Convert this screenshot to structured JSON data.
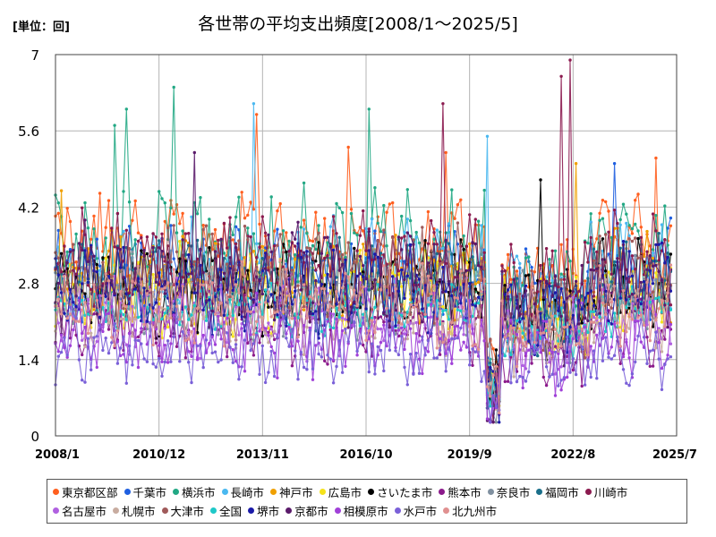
{
  "header": {
    "unit_label": "[単位：回]",
    "title": "各世帯の平均支出頻度[2008/1～2025/5]"
  },
  "chart_data": {
    "type": "line",
    "title": "各世帯の平均支出頻度[2008/1～2025/5]",
    "unit": "回",
    "xlabel": "",
    "ylabel": "",
    "x_range": [
      "2008/1",
      "2025/7"
    ],
    "x_ticks": [
      "2008/1",
      "2010/12",
      "2013/11",
      "2016/10",
      "2019/9",
      "2022/8",
      "2025/7"
    ],
    "ylim": [
      0,
      7
    ],
    "y_ticks": [
      "0",
      "1.4",
      "2.8",
      "4.2",
      "5.6",
      "7"
    ],
    "grid": true,
    "legend_position": "bottom",
    "series": [
      {
        "name": "東京都区部",
        "color": "#ff5f1f",
        "level": 3.6,
        "amp": 0.55,
        "seed": 11,
        "peaks": [
          {
            "x": "2013/9",
            "y": 5.9
          },
          {
            "x": "2016/4",
            "y": 5.3
          },
          {
            "x": "2024/12",
            "y": 5.1
          },
          {
            "x": "2019/1",
            "y": 5.2
          }
        ]
      },
      {
        "name": "千葉市",
        "color": "#1f5fe0",
        "level": 3.0,
        "amp": 0.6,
        "seed": 12,
        "peaks": [
          {
            "x": "2023/10",
            "y": 5.0
          },
          {
            "x": "2025/5",
            "y": 4.0
          }
        ]
      },
      {
        "name": "横浜市",
        "color": "#22a884",
        "level": 3.4,
        "amp": 0.75,
        "seed": 13,
        "peaks": [
          {
            "x": "2011/5",
            "y": 6.4
          },
          {
            "x": "2010/1",
            "y": 6.0
          },
          {
            "x": "2016/11",
            "y": 6.0
          },
          {
            "x": "2009/9",
            "y": 5.7
          }
        ]
      },
      {
        "name": "長崎市",
        "color": "#4ab8f0",
        "level": 3.1,
        "amp": 0.6,
        "seed": 14,
        "peaks": [
          {
            "x": "2013/8",
            "y": 6.1
          },
          {
            "x": "2020/3",
            "y": 5.5
          }
        ]
      },
      {
        "name": "神戸市",
        "color": "#f0a000",
        "level": 2.9,
        "amp": 0.55,
        "seed": 15,
        "peaks": [
          {
            "x": "2022/9",
            "y": 5.0
          },
          {
            "x": "2008/3",
            "y": 4.5
          }
        ]
      },
      {
        "name": "広島市",
        "color": "#f5e21a",
        "level": 2.7,
        "amp": 0.55,
        "seed": 16,
        "peaks": []
      },
      {
        "name": "さいたま市",
        "color": "#000000",
        "level": 2.7,
        "amp": 0.55,
        "seed": 17,
        "peaks": [
          {
            "x": "2021/9",
            "y": 4.7
          }
        ]
      },
      {
        "name": "熊本市",
        "color": "#8b1a8b",
        "level": 2.0,
        "amp": 0.45,
        "seed": 18,
        "peaks": []
      },
      {
        "name": "奈良市",
        "color": "#8090a0",
        "level": 2.6,
        "amp": 0.55,
        "seed": 19,
        "peaks": []
      },
      {
        "name": "福岡市",
        "color": "#1a6f8a",
        "level": 2.8,
        "amp": 0.55,
        "seed": 20,
        "peaks": []
      },
      {
        "name": "川崎市",
        "color": "#8b1a4f",
        "level": 3.2,
        "amp": 0.6,
        "seed": 21,
        "peaks": [
          {
            "x": "2022/7",
            "y": 6.9
          },
          {
            "x": "2022/4",
            "y": 6.6
          },
          {
            "x": "2018/12",
            "y": 6.1
          }
        ]
      },
      {
        "name": "名古屋市",
        "color": "#b060e0",
        "level": 2.2,
        "amp": 0.5,
        "seed": 22,
        "peaks": []
      },
      {
        "name": "札幌市",
        "color": "#c8aca0",
        "level": 2.3,
        "amp": 0.5,
        "seed": 23,
        "peaks": []
      },
      {
        "name": "大津市",
        "color": "#a05a5a",
        "level": 2.9,
        "amp": 0.6,
        "seed": 24,
        "peaks": []
      },
      {
        "name": "全国",
        "color": "#1ec8c8",
        "level": 2.3,
        "amp": 0.3,
        "seed": 25,
        "peaks": []
      },
      {
        "name": "堺市",
        "color": "#1a1aa8",
        "level": 2.7,
        "amp": 0.55,
        "seed": 26,
        "peaks": []
      },
      {
        "name": "京都市",
        "color": "#5a1a6a",
        "level": 2.9,
        "amp": 0.65,
        "seed": 27,
        "peaks": [
          {
            "x": "2011/12",
            "y": 5.2
          }
        ]
      },
      {
        "name": "相模原市",
        "color": "#a040d8",
        "level": 1.8,
        "amp": 0.5,
        "seed": 28,
        "peaks": []
      },
      {
        "name": "水戸市",
        "color": "#7a60d8",
        "level": 1.6,
        "amp": 0.45,
        "seed": 29,
        "peaks": []
      },
      {
        "name": "北九州市",
        "color": "#e09090",
        "level": 2.4,
        "amp": 0.5,
        "seed": 30,
        "peaks": []
      }
    ]
  }
}
